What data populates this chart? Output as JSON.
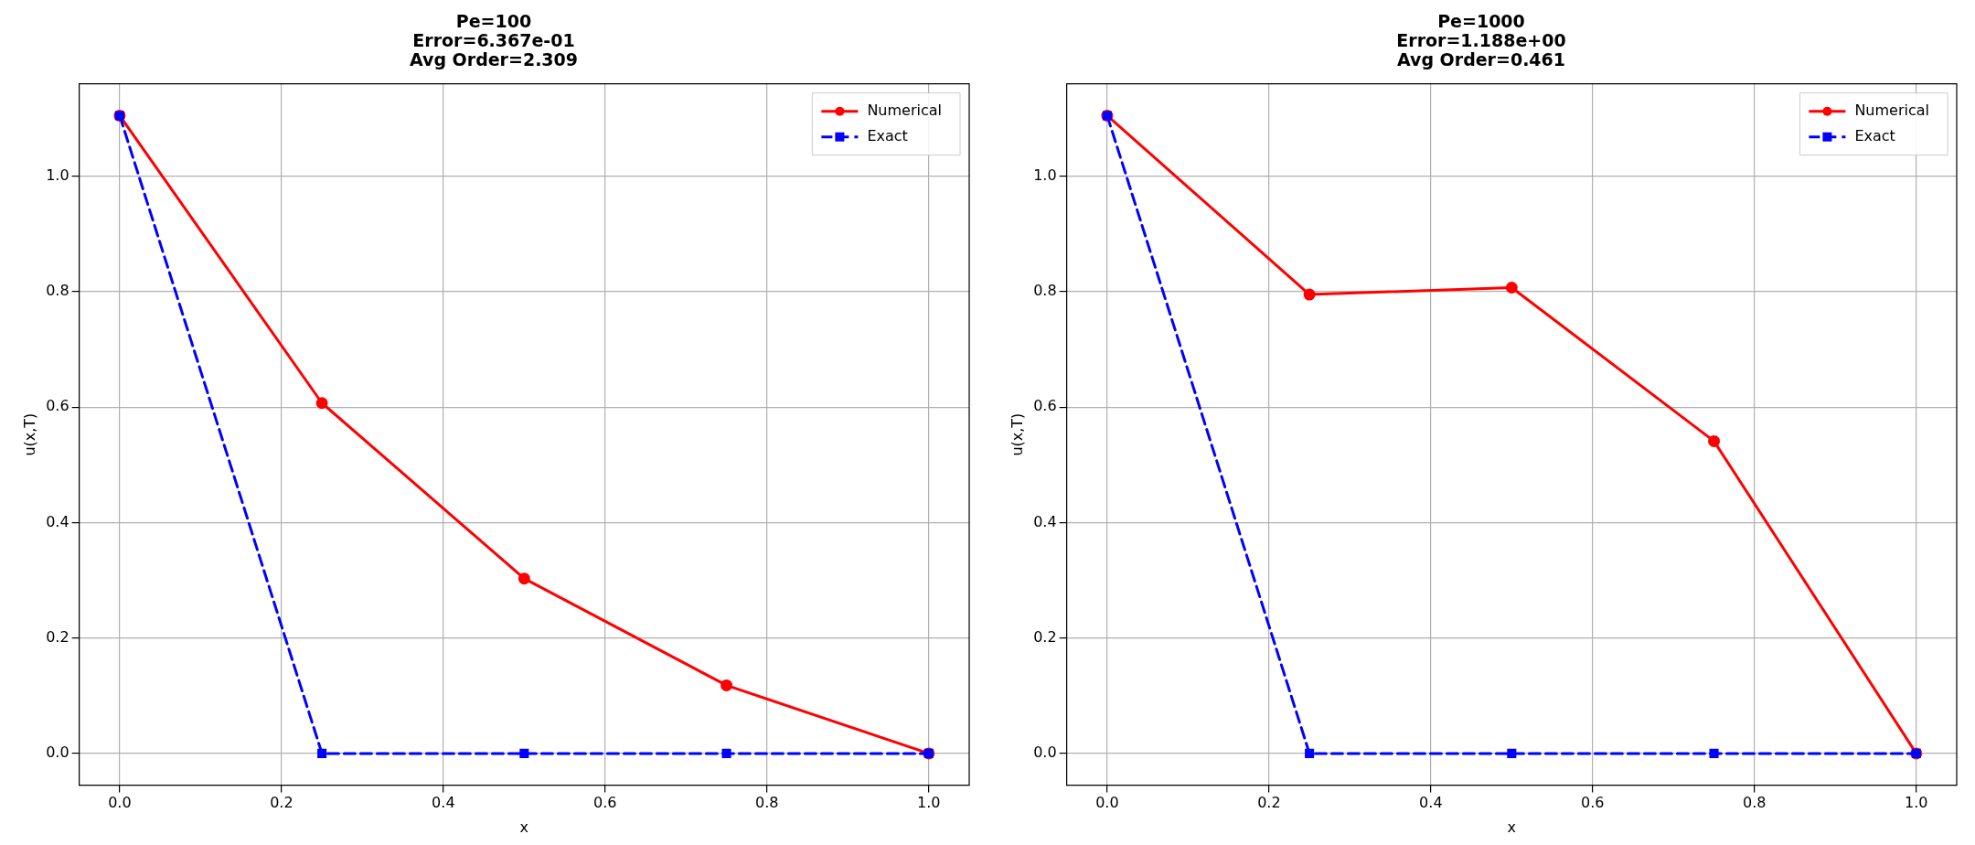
{
  "chart_data": [
    {
      "type": "line",
      "title": "Pe=100\nError=6.367e-01\nAvg Order=2.309",
      "xlabel": "x",
      "ylabel": "u(x,T)",
      "x": [
        0,
        0.25,
        0.5,
        0.75,
        1.0
      ],
      "series": [
        {
          "name": "Numerical",
          "color": "#ff0000",
          "values": [
            1.105,
            0.607,
            0.303,
            0.118,
            0.0
          ],
          "marker": "circle",
          "line_style": "solid"
        },
        {
          "name": "Exact",
          "color": "#0000ff",
          "values": [
            1.105,
            0.0,
            0.0,
            0.0,
            0.0
          ],
          "marker": "square",
          "line_style": "dashed"
        }
      ],
      "xlim": [
        -0.05,
        1.05
      ],
      "xticks": [
        {
          "value": 0,
          "label": "0.0"
        },
        {
          "value": 0.2,
          "label": "0.2"
        },
        {
          "value": 0.4,
          "label": "0.4"
        },
        {
          "value": 0.6,
          "label": "0.6"
        },
        {
          "value": 0.8,
          "label": "0.8"
        },
        {
          "value": 1,
          "label": "1.0"
        }
      ],
      "ylim": [
        -0.055,
        1.16
      ],
      "yticks": [
        {
          "value": 0,
          "label": "0.0"
        },
        {
          "value": 0.2,
          "label": "0.2"
        },
        {
          "value": 0.4,
          "label": "0.4"
        },
        {
          "value": 0.6,
          "label": "0.6"
        },
        {
          "value": 0.8,
          "label": "0.8"
        },
        {
          "value": 1,
          "label": "1.0"
        }
      ],
      "grid": true,
      "legend": "top right"
    },
    {
      "type": "line",
      "title": "Pe=1000\nError=1.188e+00\nAvg Order=0.461",
      "xlabel": "x",
      "ylabel": "u(x,T)",
      "x": [
        0,
        0.25,
        0.5,
        0.75,
        1.0
      ],
      "series": [
        {
          "name": "Numerical",
          "color": "#ff0000",
          "values": [
            1.105,
            0.795,
            0.807,
            0.541,
            0.0
          ],
          "marker": "circle",
          "line_style": "solid"
        },
        {
          "name": "Exact",
          "color": "#0000ff",
          "values": [
            1.105,
            0.0,
            0.0,
            0.0,
            0.0
          ],
          "marker": "square",
          "line_style": "dashed"
        }
      ],
      "xlim": [
        -0.05,
        1.05
      ],
      "xticks": [
        {
          "value": 0,
          "label": "0.0"
        },
        {
          "value": 0.2,
          "label": "0.2"
        },
        {
          "value": 0.4,
          "label": "0.4"
        },
        {
          "value": 0.6,
          "label": "0.6"
        },
        {
          "value": 0.8,
          "label": "0.8"
        },
        {
          "value": 1,
          "label": "1.0"
        }
      ],
      "ylim": [
        -0.055,
        1.16
      ],
      "yticks": [
        {
          "value": 0,
          "label": "0.0"
        },
        {
          "value": 0.2,
          "label": "0.2"
        },
        {
          "value": 0.4,
          "label": "0.4"
        },
        {
          "value": 0.6,
          "label": "0.6"
        },
        {
          "value": 0.8,
          "label": "0.8"
        },
        {
          "value": 1,
          "label": "1.0"
        }
      ],
      "grid": true,
      "legend": "top right"
    }
  ]
}
